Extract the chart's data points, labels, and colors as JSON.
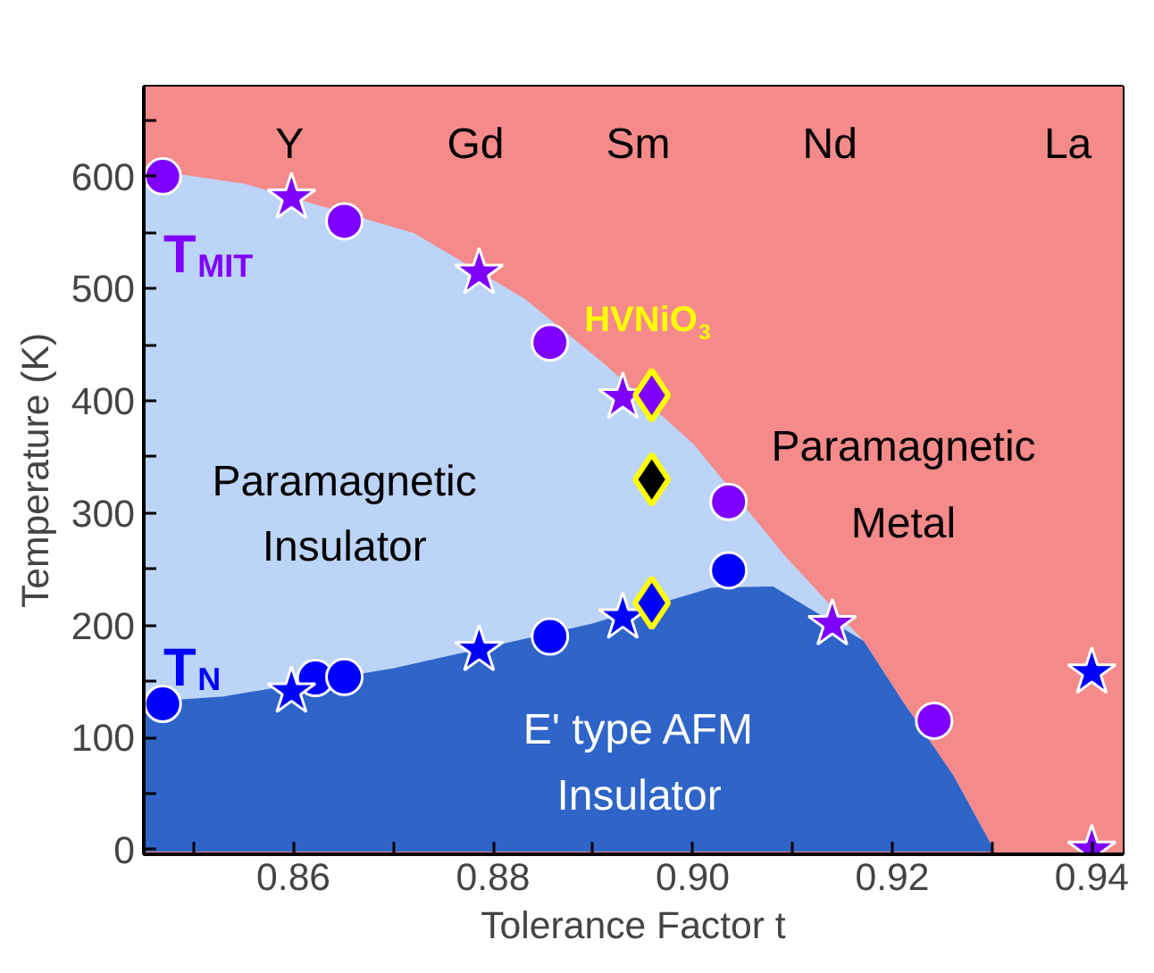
{
  "chart_data": {
    "type": "scatter",
    "xlabel": "Tolerance Factor t",
    "ylabel": "Temperature (K)",
    "xlim": [
      0.845,
      0.9431
    ],
    "ylim": [
      -4,
      680
    ],
    "xticks": [
      {
        "value": 0.85,
        "label": null
      },
      0.86,
      {
        "value": 0.87,
        "label": null
      },
      0.88,
      {
        "value": 0.89,
        "label": null
      },
      {
        "value": 0.9,
        "label": "0.90"
      },
      {
        "value": 0.91,
        "label": null
      },
      0.92,
      {
        "value": 0.93,
        "label": null
      },
      0.94
    ],
    "yticks": [
      0,
      {
        "value": 50,
        "label": null
      },
      100,
      {
        "value": 150,
        "label": null
      },
      200,
      {
        "value": 250,
        "label": null
      },
      300,
      {
        "value": 350,
        "label": null
      },
      400,
      {
        "value": 450,
        "label": null
      },
      500,
      {
        "value": 550,
        "label": null
      },
      600,
      {
        "value": 650,
        "label": null
      }
    ],
    "bands": [
      {
        "axis": "x",
        "from": 0.845,
        "to": 0.9431,
        "color": "#f58a8a"
      }
    ],
    "series": [
      {
        "type": "area",
        "color": "#bcd4f7",
        "x": [
          0.845,
          0.855,
          0.872,
          0.883,
          0.891,
          0.9,
          0.909,
          0.917,
          0.921,
          0.926,
          0.93
        ],
        "values": [
          605,
          592,
          548,
          490,
          432,
          360,
          262,
          185,
          130,
          65,
          0
        ]
      },
      {
        "type": "area",
        "color": "#2f64c8",
        "x": [
          0.845,
          0.853,
          0.87,
          0.882,
          0.89,
          0.902,
          0.908,
          0.917,
          0.921,
          0.926,
          0.93
        ],
        "values": [
          130,
          135,
          160,
          184,
          200,
          232,
          233,
          185,
          130,
          65,
          0
        ]
      },
      {
        "marker": "circle",
        "color": "#7f00ff",
        "x": [
          0.8469,
          0.8651,
          0.8857,
          0.9036,
          0.9242
        ],
        "values": [
          600,
          560,
          452,
          310,
          115
        ]
      },
      {
        "marker": "star",
        "color": "#7f00ff",
        "x": [
          0.8598,
          0.8786,
          0.893,
          0.914,
          0.94
        ],
        "values": [
          581,
          514,
          403,
          201,
          0
        ]
      },
      {
        "marker": "circle",
        "color": "#0000ff",
        "x": [
          0.8469,
          0.8622,
          0.8651,
          0.8857,
          0.9036
        ],
        "values": [
          130,
          153,
          154,
          190,
          249
        ]
      },
      {
        "marker": "star",
        "color": "#0000ff",
        "x": [
          0.8598,
          0.8786,
          0.893,
          0.94
        ],
        "values": [
          141,
          178,
          207,
          158
        ]
      },
      {
        "marker": "diamond",
        "color": "#7f00ff",
        "x": [
          0.8959
        ],
        "values": [
          405
        ]
      },
      {
        "marker": "diamond",
        "color": "#000000",
        "x": [
          0.8959
        ],
        "values": [
          330
        ]
      },
      {
        "marker": "diamond",
        "color": "#0000ff",
        "x": [
          0.8959
        ],
        "values": [
          220
        ]
      }
    ],
    "annotations": [
      "Y",
      "Gd",
      "Sm",
      "Nd",
      "La",
      "T$_{MIT}$",
      "HVNiO$_{3}$",
      "Paramagnetic",
      "Insulator",
      "Paramagnetic",
      "Metal",
      "T$_{N}$",
      "E' type AFM",
      "Insulator"
    ]
  }
}
